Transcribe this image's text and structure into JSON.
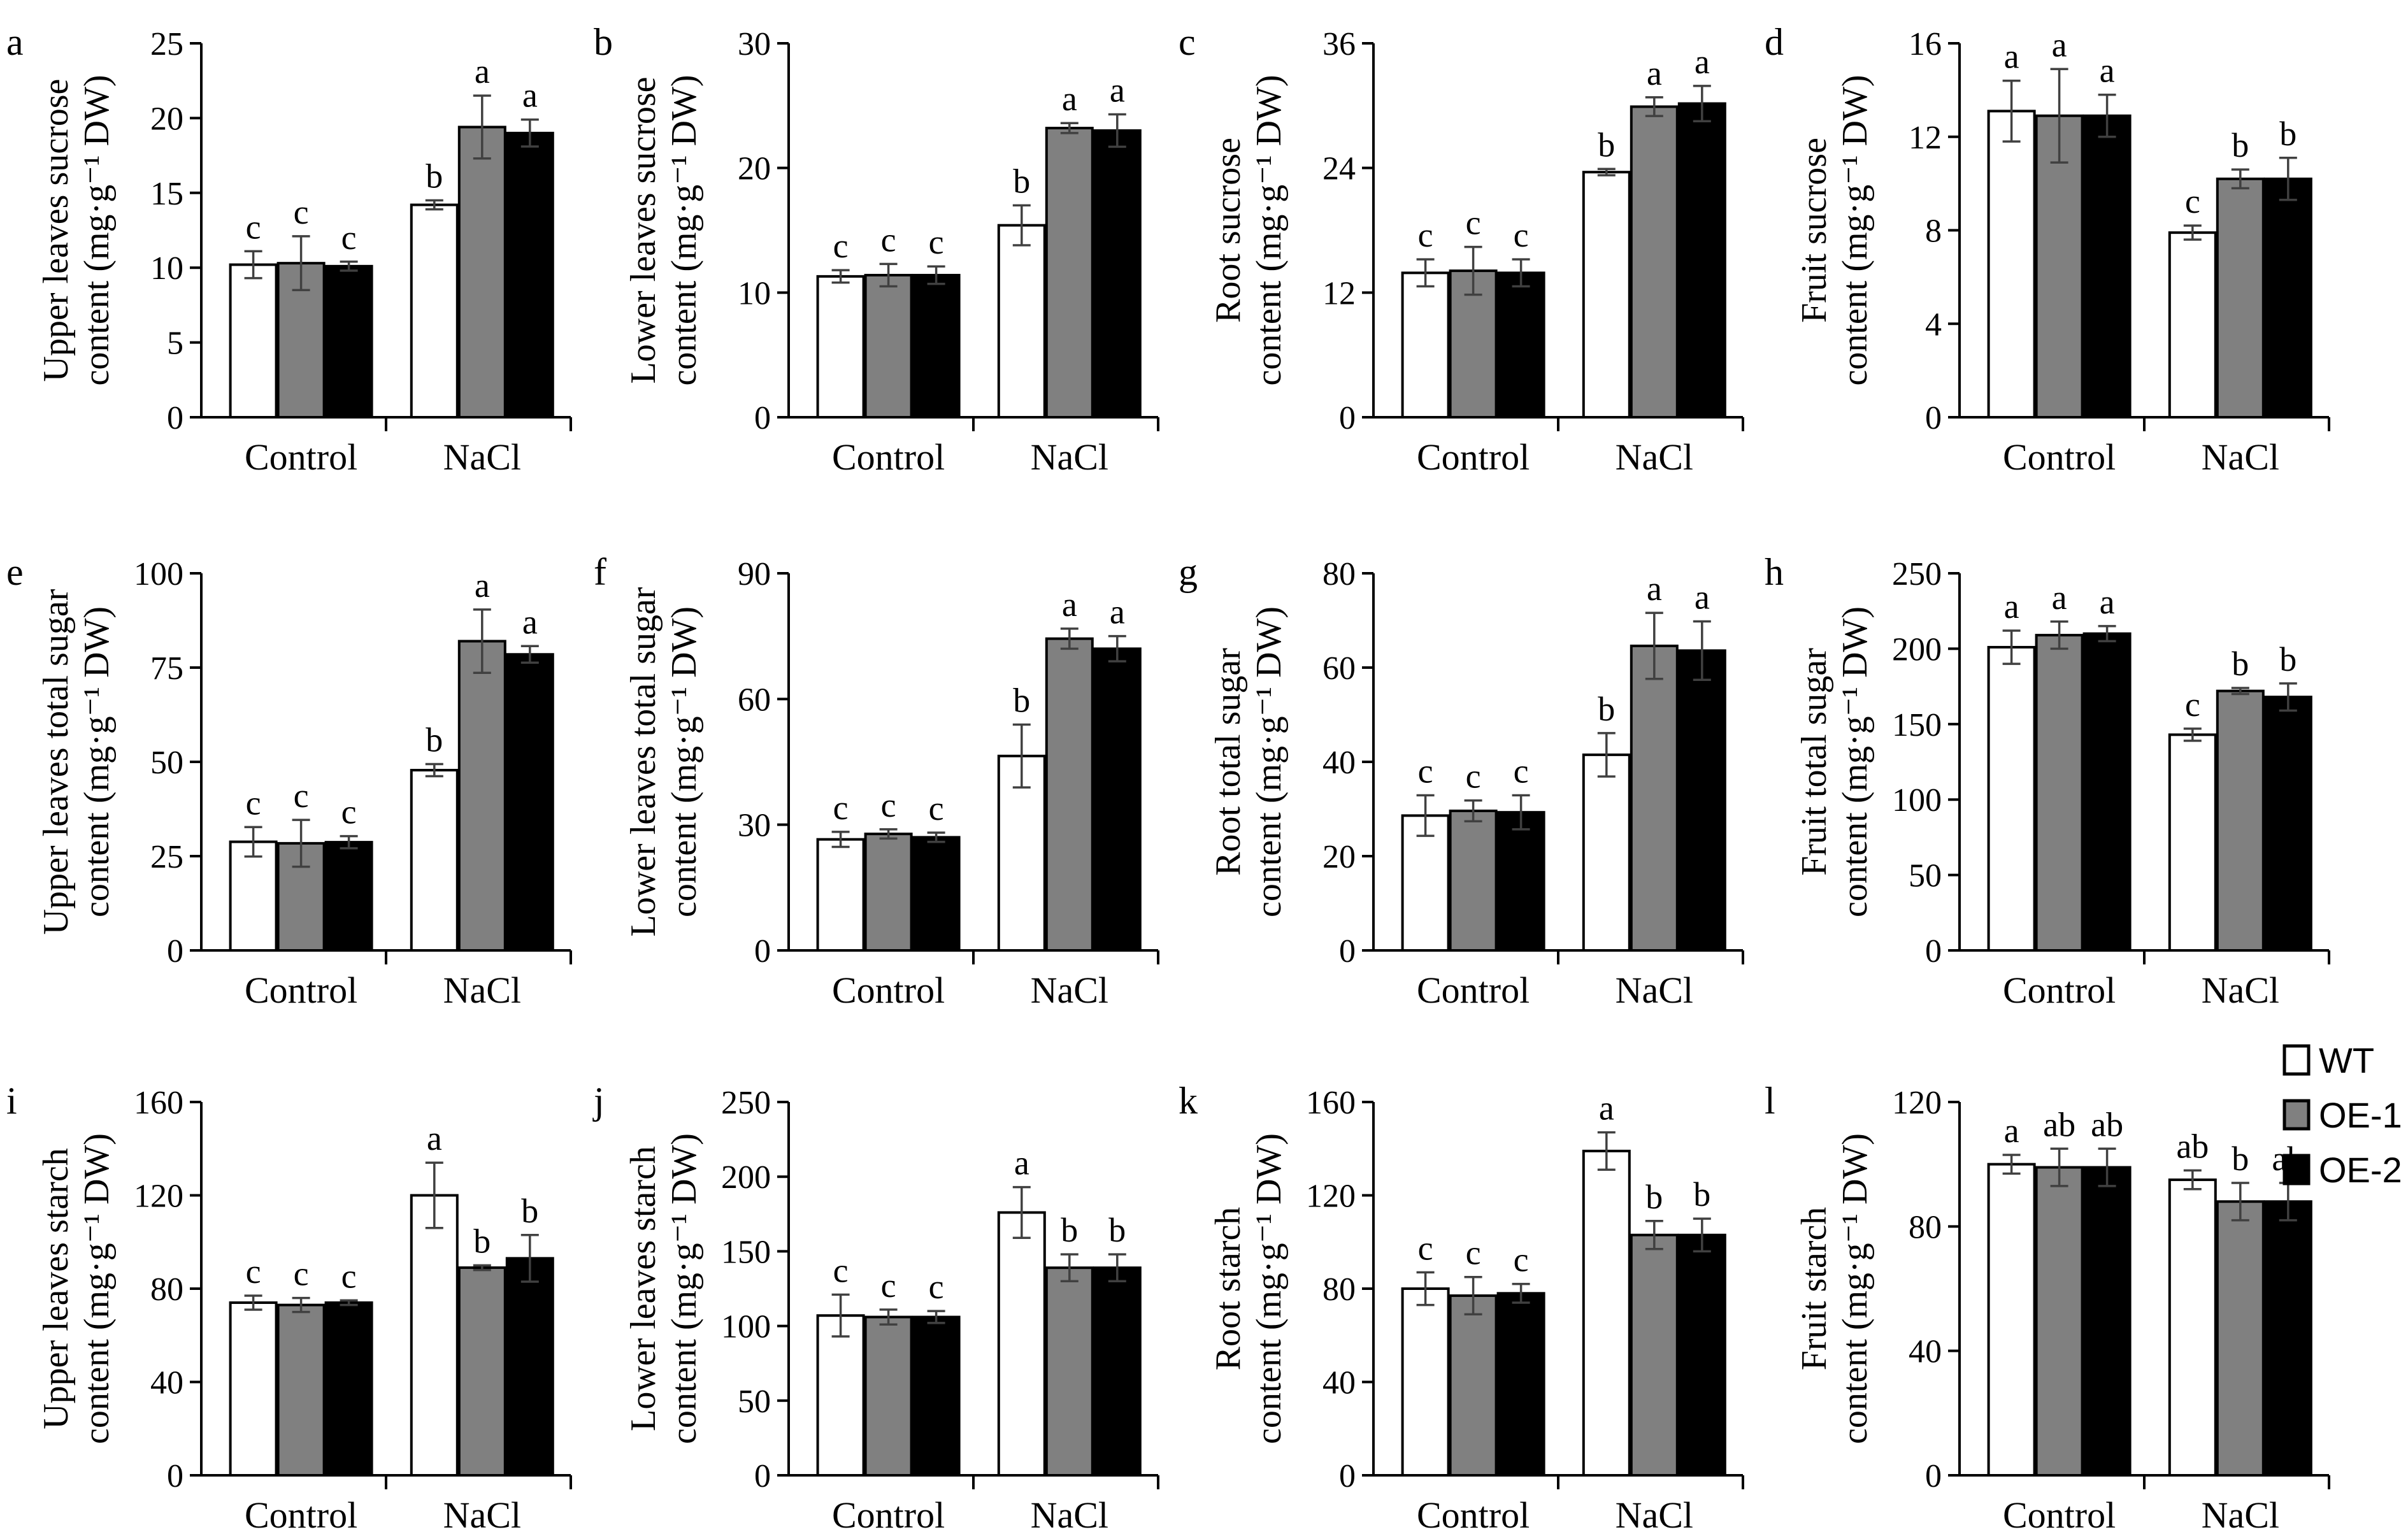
{
  "figure": {
    "colors": {
      "WT": "#ffffff",
      "OE-1": "#808080",
      "OE-2": "#000000",
      "axis": "#000000",
      "error": "#404040"
    },
    "legend": [
      {
        "key": "WT",
        "label": "WT"
      },
      {
        "key": "OE-1",
        "label": "OE-1"
      },
      {
        "key": "OE-2",
        "label": "OE-2"
      }
    ]
  },
  "chart_data": [
    {
      "id": "a",
      "letter": "a",
      "type": "bar",
      "ylabel_lines": [
        "Upper leaves sucrose",
        "content (mg·g⁻¹ DW)"
      ],
      "ylim": [
        0,
        25
      ],
      "yticks": [
        0,
        5,
        10,
        15,
        20,
        25
      ],
      "categories": [
        "Control",
        "NaCl"
      ],
      "series": [
        {
          "name": "WT",
          "values": [
            10.2,
            14.2
          ],
          "errors": [
            0.9,
            0.3
          ],
          "letters": [
            "c",
            "b"
          ]
        },
        {
          "name": "OE-1",
          "values": [
            10.3,
            19.4
          ],
          "errors": [
            1.8,
            2.1
          ],
          "letters": [
            "c",
            "a"
          ]
        },
        {
          "name": "OE-2",
          "values": [
            10.1,
            19.0
          ],
          "errors": [
            0.3,
            0.9
          ],
          "letters": [
            "c",
            "a"
          ]
        }
      ]
    },
    {
      "id": "b",
      "letter": "b",
      "type": "bar",
      "ylabel_lines": [
        "Lower leaves sucrose",
        "content (mg·g⁻¹ DW)"
      ],
      "ylim": [
        0,
        30
      ],
      "yticks": [
        0,
        10,
        20,
        30
      ],
      "categories": [
        "Control",
        "NaCl"
      ],
      "series": [
        {
          "name": "WT",
          "values": [
            11.3,
            15.4
          ],
          "errors": [
            0.5,
            1.6
          ],
          "letters": [
            "c",
            "b"
          ]
        },
        {
          "name": "OE-1",
          "values": [
            11.4,
            23.2
          ],
          "errors": [
            0.9,
            0.4
          ],
          "letters": [
            "c",
            "a"
          ]
        },
        {
          "name": "OE-2",
          "values": [
            11.4,
            23.0
          ],
          "errors": [
            0.7,
            1.3
          ],
          "letters": [
            "c",
            "a"
          ]
        }
      ]
    },
    {
      "id": "c",
      "letter": "c",
      "type": "bar",
      "ylabel_lines": [
        "Root sucrose",
        "content (mg·g⁻¹ DW)"
      ],
      "ylim": [
        0,
        36
      ],
      "yticks": [
        0,
        12,
        24,
        36
      ],
      "categories": [
        "Control",
        "NaCl"
      ],
      "series": [
        {
          "name": "WT",
          "values": [
            13.9,
            23.6
          ],
          "errors": [
            1.3,
            0.3
          ],
          "letters": [
            "c",
            "b"
          ]
        },
        {
          "name": "OE-1",
          "values": [
            14.1,
            29.9
          ],
          "errors": [
            2.3,
            0.9
          ],
          "letters": [
            "c",
            "a"
          ]
        },
        {
          "name": "OE-2",
          "values": [
            13.9,
            30.2
          ],
          "errors": [
            1.3,
            1.7
          ],
          "letters": [
            "c",
            "a"
          ]
        }
      ]
    },
    {
      "id": "d",
      "letter": "d",
      "type": "bar",
      "ylabel_lines": [
        "Fruit sucrose",
        "content (mg·g⁻¹ DW)"
      ],
      "ylim": [
        0,
        16
      ],
      "yticks": [
        0,
        4,
        8,
        12,
        16
      ],
      "categories": [
        "Control",
        "NaCl"
      ],
      "series": [
        {
          "name": "WT",
          "values": [
            13.1,
            7.9
          ],
          "errors": [
            1.3,
            0.3
          ],
          "letters": [
            "a",
            "c"
          ]
        },
        {
          "name": "OE-1",
          "values": [
            12.9,
            10.2
          ],
          "errors": [
            2.0,
            0.4
          ],
          "letters": [
            "a",
            "b"
          ]
        },
        {
          "name": "OE-2",
          "values": [
            12.9,
            10.2
          ],
          "errors": [
            0.9,
            0.9
          ],
          "letters": [
            "a",
            "b"
          ]
        }
      ]
    },
    {
      "id": "e",
      "letter": "e",
      "type": "bar",
      "ylabel_lines": [
        "Upper leaves total sugar",
        "content (mg·g⁻¹ DW)"
      ],
      "ylim": [
        0,
        100
      ],
      "yticks": [
        0,
        25,
        50,
        75,
        100
      ],
      "categories": [
        "Control",
        "NaCl"
      ],
      "series": [
        {
          "name": "WT",
          "values": [
            28.8,
            47.8
          ],
          "errors": [
            3.9,
            1.6
          ],
          "letters": [
            "c",
            "b"
          ]
        },
        {
          "name": "OE-1",
          "values": [
            28.4,
            82.0
          ],
          "errors": [
            6.2,
            8.4
          ],
          "letters": [
            "c",
            "a"
          ]
        },
        {
          "name": "OE-2",
          "values": [
            28.7,
            78.5
          ],
          "errors": [
            1.6,
            2.2
          ],
          "letters": [
            "c",
            "a"
          ]
        }
      ]
    },
    {
      "id": "f",
      "letter": "f",
      "type": "bar",
      "ylabel_lines": [
        "Lower leaves total sugar",
        "content (mg·g⁻¹ DW)"
      ],
      "ylim": [
        0,
        90
      ],
      "yticks": [
        0,
        30,
        60,
        90
      ],
      "categories": [
        "Control",
        "NaCl"
      ],
      "series": [
        {
          "name": "WT",
          "values": [
            26.5,
            46.4
          ],
          "errors": [
            1.8,
            7.5
          ],
          "letters": [
            "c",
            "b"
          ]
        },
        {
          "name": "OE-1",
          "values": [
            27.8,
            74.4
          ],
          "errors": [
            1.1,
            2.4
          ],
          "letters": [
            "c",
            "a"
          ]
        },
        {
          "name": "OE-2",
          "values": [
            27.0,
            72.0
          ],
          "errors": [
            1.1,
            3.0
          ],
          "letters": [
            "c",
            "a"
          ]
        }
      ]
    },
    {
      "id": "g",
      "letter": "g",
      "type": "bar",
      "ylabel_lines": [
        "Root total sugar",
        "content (mg·g⁻¹ DW)"
      ],
      "ylim": [
        0,
        80
      ],
      "yticks": [
        0,
        20,
        40,
        60,
        80
      ],
      "categories": [
        "Control",
        "NaCl"
      ],
      "series": [
        {
          "name": "WT",
          "values": [
            28.6,
            41.5
          ],
          "errors": [
            4.3,
            4.6
          ],
          "letters": [
            "c",
            "b"
          ]
        },
        {
          "name": "OE-1",
          "values": [
            29.6,
            64.6
          ],
          "errors": [
            2.2,
            7.0
          ],
          "letters": [
            "c",
            "a"
          ]
        },
        {
          "name": "OE-2",
          "values": [
            29.3,
            63.6
          ],
          "errors": [
            3.6,
            6.2
          ],
          "letters": [
            "c",
            "a"
          ]
        }
      ]
    },
    {
      "id": "h",
      "letter": "h",
      "type": "bar",
      "ylabel_lines": [
        "Fruit total sugar",
        "content (mg·g⁻¹ DW)"
      ],
      "ylim": [
        0,
        250
      ],
      "yticks": [
        0,
        50,
        100,
        150,
        200,
        250
      ],
      "categories": [
        "Control",
        "NaCl"
      ],
      "series": [
        {
          "name": "WT",
          "values": [
            201,
            143
          ],
          "errors": [
            11,
            4
          ],
          "letters": [
            "a",
            "c"
          ]
        },
        {
          "name": "OE-1",
          "values": [
            209,
            172
          ],
          "errors": [
            9,
            2
          ],
          "letters": [
            "a",
            "b"
          ]
        },
        {
          "name": "OE-2",
          "values": [
            210,
            168
          ],
          "errors": [
            5,
            9
          ],
          "letters": [
            "a",
            "b"
          ]
        }
      ]
    },
    {
      "id": "i",
      "letter": "i",
      "type": "bar",
      "ylabel_lines": [
        "Upper leaves starch",
        "content (mg·g⁻¹ DW)"
      ],
      "ylim": [
        0,
        160
      ],
      "yticks": [
        0,
        40,
        80,
        120,
        160
      ],
      "categories": [
        "Control",
        "NaCl"
      ],
      "series": [
        {
          "name": "WT",
          "values": [
            74,
            120
          ],
          "errors": [
            3,
            14
          ],
          "letters": [
            "c",
            "a"
          ]
        },
        {
          "name": "OE-1",
          "values": [
            73,
            89
          ],
          "errors": [
            3,
            1
          ],
          "letters": [
            "c",
            "b"
          ]
        },
        {
          "name": "OE-2",
          "values": [
            74,
            93
          ],
          "errors": [
            1,
            10
          ],
          "letters": [
            "c",
            "b"
          ]
        }
      ]
    },
    {
      "id": "j",
      "letter": "j",
      "type": "bar",
      "ylabel_lines": [
        "Lower leaves starch",
        "content (mg·g⁻¹ DW)"
      ],
      "ylim": [
        0,
        250
      ],
      "yticks": [
        0,
        50,
        100,
        150,
        200,
        250
      ],
      "categories": [
        "Control",
        "NaCl"
      ],
      "series": [
        {
          "name": "WT",
          "values": [
            107,
            176
          ],
          "errors": [
            14,
            17
          ],
          "letters": [
            "c",
            "a"
          ]
        },
        {
          "name": "OE-1",
          "values": [
            106,
            139
          ],
          "errors": [
            5,
            9
          ],
          "letters": [
            "c",
            "b"
          ]
        },
        {
          "name": "OE-2",
          "values": [
            106,
            139
          ],
          "errors": [
            4,
            9
          ],
          "letters": [
            "c",
            "b"
          ]
        }
      ]
    },
    {
      "id": "k",
      "letter": "k",
      "type": "bar",
      "ylabel_lines": [
        "Root starch",
        "content (mg·g⁻¹ DW)"
      ],
      "ylim": [
        0,
        160
      ],
      "yticks": [
        0,
        40,
        80,
        120,
        160
      ],
      "categories": [
        "Control",
        "NaCl"
      ],
      "series": [
        {
          "name": "WT",
          "values": [
            80,
            139
          ],
          "errors": [
            7,
            8
          ],
          "letters": [
            "c",
            "a"
          ]
        },
        {
          "name": "OE-1",
          "values": [
            77,
            103
          ],
          "errors": [
            8,
            6
          ],
          "letters": [
            "c",
            "b"
          ]
        },
        {
          "name": "OE-2",
          "values": [
            78,
            103
          ],
          "errors": [
            4,
            7
          ],
          "letters": [
            "c",
            "b"
          ]
        }
      ]
    },
    {
      "id": "l",
      "letter": "l",
      "type": "bar",
      "ylabel_lines": [
        "Fruit starch",
        "content (mg·g⁻¹ DW)"
      ],
      "ylim": [
        0,
        120
      ],
      "yticks": [
        0,
        40,
        80,
        120
      ],
      "categories": [
        "Control",
        "NaCl"
      ],
      "series": [
        {
          "name": "WT",
          "values": [
            100,
            95
          ],
          "errors": [
            3,
            3
          ],
          "letters": [
            "a",
            "ab"
          ]
        },
        {
          "name": "OE-1",
          "values": [
            99,
            88
          ],
          "errors": [
            6,
            6
          ],
          "letters": [
            "ab",
            "b"
          ]
        },
        {
          "name": "OE-2",
          "values": [
            99,
            88
          ],
          "errors": [
            6,
            6
          ],
          "letters": [
            "ab",
            "ab"
          ]
        }
      ]
    }
  ]
}
